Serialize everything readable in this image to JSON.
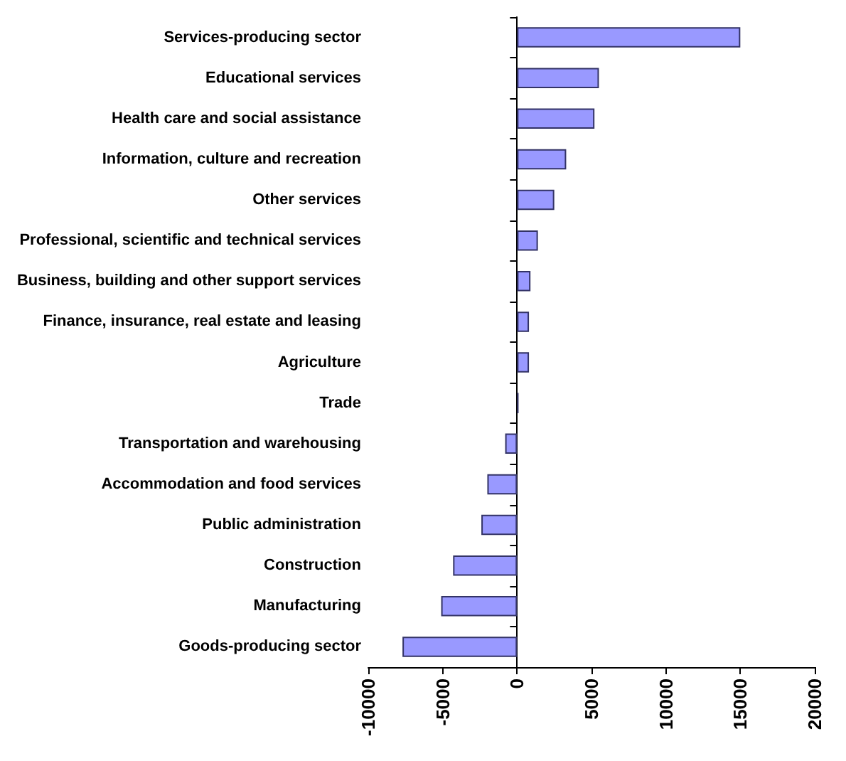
{
  "chart_data": {
    "type": "bar",
    "orientation": "horizontal",
    "categories": [
      "Services-producing sector",
      "Educational services",
      "Health care and social assistance",
      "Information, culture and recreation",
      "Other services",
      "Professional, scientific and technical services",
      "Business, building and other support services",
      "Finance, insurance, real estate and leasing",
      "Agriculture",
      "Trade",
      "Transportation and warehousing",
      "Accommodation and food services",
      "Public administration",
      "Construction",
      "Manufacturing",
      "Goods-producing sector"
    ],
    "values": [
      15000,
      5500,
      5200,
      3300,
      2500,
      1400,
      900,
      800,
      800,
      100,
      -800,
      -2000,
      -2400,
      -4300,
      -5100,
      -7700
    ],
    "color": "#9999ff",
    "xlim": [
      -10000,
      20000
    ],
    "xticks": [
      -10000,
      -5000,
      0,
      5000,
      10000,
      15000,
      20000
    ]
  }
}
